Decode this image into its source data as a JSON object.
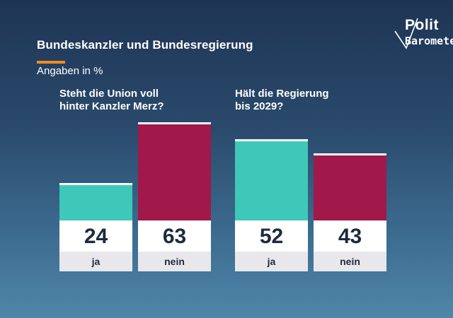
{
  "title": "Bundeskanzler und Bundesregierung",
  "subtitle": "Angaben in %",
  "logo": {
    "line1": "Polit",
    "line2": "Barometer"
  },
  "colors": {
    "ja": "#3ec8b9",
    "nein": "#a0194a",
    "accent": "#f08a1c"
  },
  "chart_data": [
    {
      "type": "bar",
      "title": "Steht die Union voll\nhinter Kanzler Merz?",
      "categories": [
        "ja",
        "nein"
      ],
      "values": [
        24,
        63
      ],
      "ylim": [
        0,
        66
      ]
    },
    {
      "type": "bar",
      "title": "Hält die Regierung\nbis 2029?",
      "categories": [
        "ja",
        "nein"
      ],
      "values": [
        52,
        43
      ],
      "ylim": [
        0,
        66
      ]
    }
  ]
}
